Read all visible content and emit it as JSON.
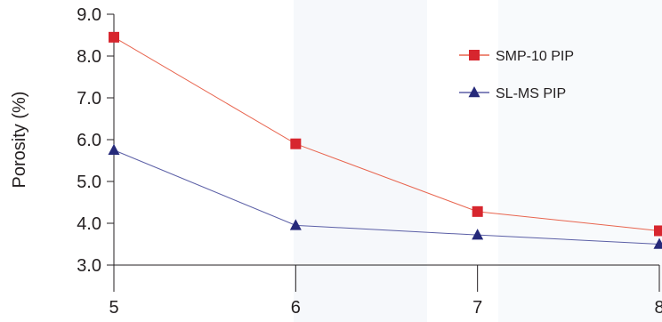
{
  "chart_data": {
    "type": "line",
    "title": "",
    "xlabel": "",
    "ylabel": "Porosity (%)",
    "x": [
      5,
      6,
      7,
      8
    ],
    "x_tick_labels": [
      "5",
      "6",
      "7",
      "8"
    ],
    "xlim": [
      5,
      8
    ],
    "ylim": [
      3.0,
      9.0
    ],
    "y_ticks": [
      3.0,
      4.0,
      5.0,
      6.0,
      7.0,
      8.0,
      9.0
    ],
    "y_tick_labels": [
      "3.0",
      "4.0",
      "5.0",
      "6.0",
      "7.0",
      "8.0",
      "9.0"
    ],
    "grid": false,
    "legend_position": "top-right",
    "series": [
      {
        "name": "SMP-10 PIP",
        "marker": "square",
        "line_color": "#e8654f",
        "marker_color": "#d7262e",
        "values": [
          8.45,
          5.9,
          4.28,
          3.82
        ]
      },
      {
        "name": "SL-MS PIP",
        "marker": "triangle",
        "line_color": "#5b5fa6",
        "marker_color": "#262a7a",
        "values": [
          5.75,
          3.95,
          3.72,
          3.5
        ]
      }
    ]
  }
}
